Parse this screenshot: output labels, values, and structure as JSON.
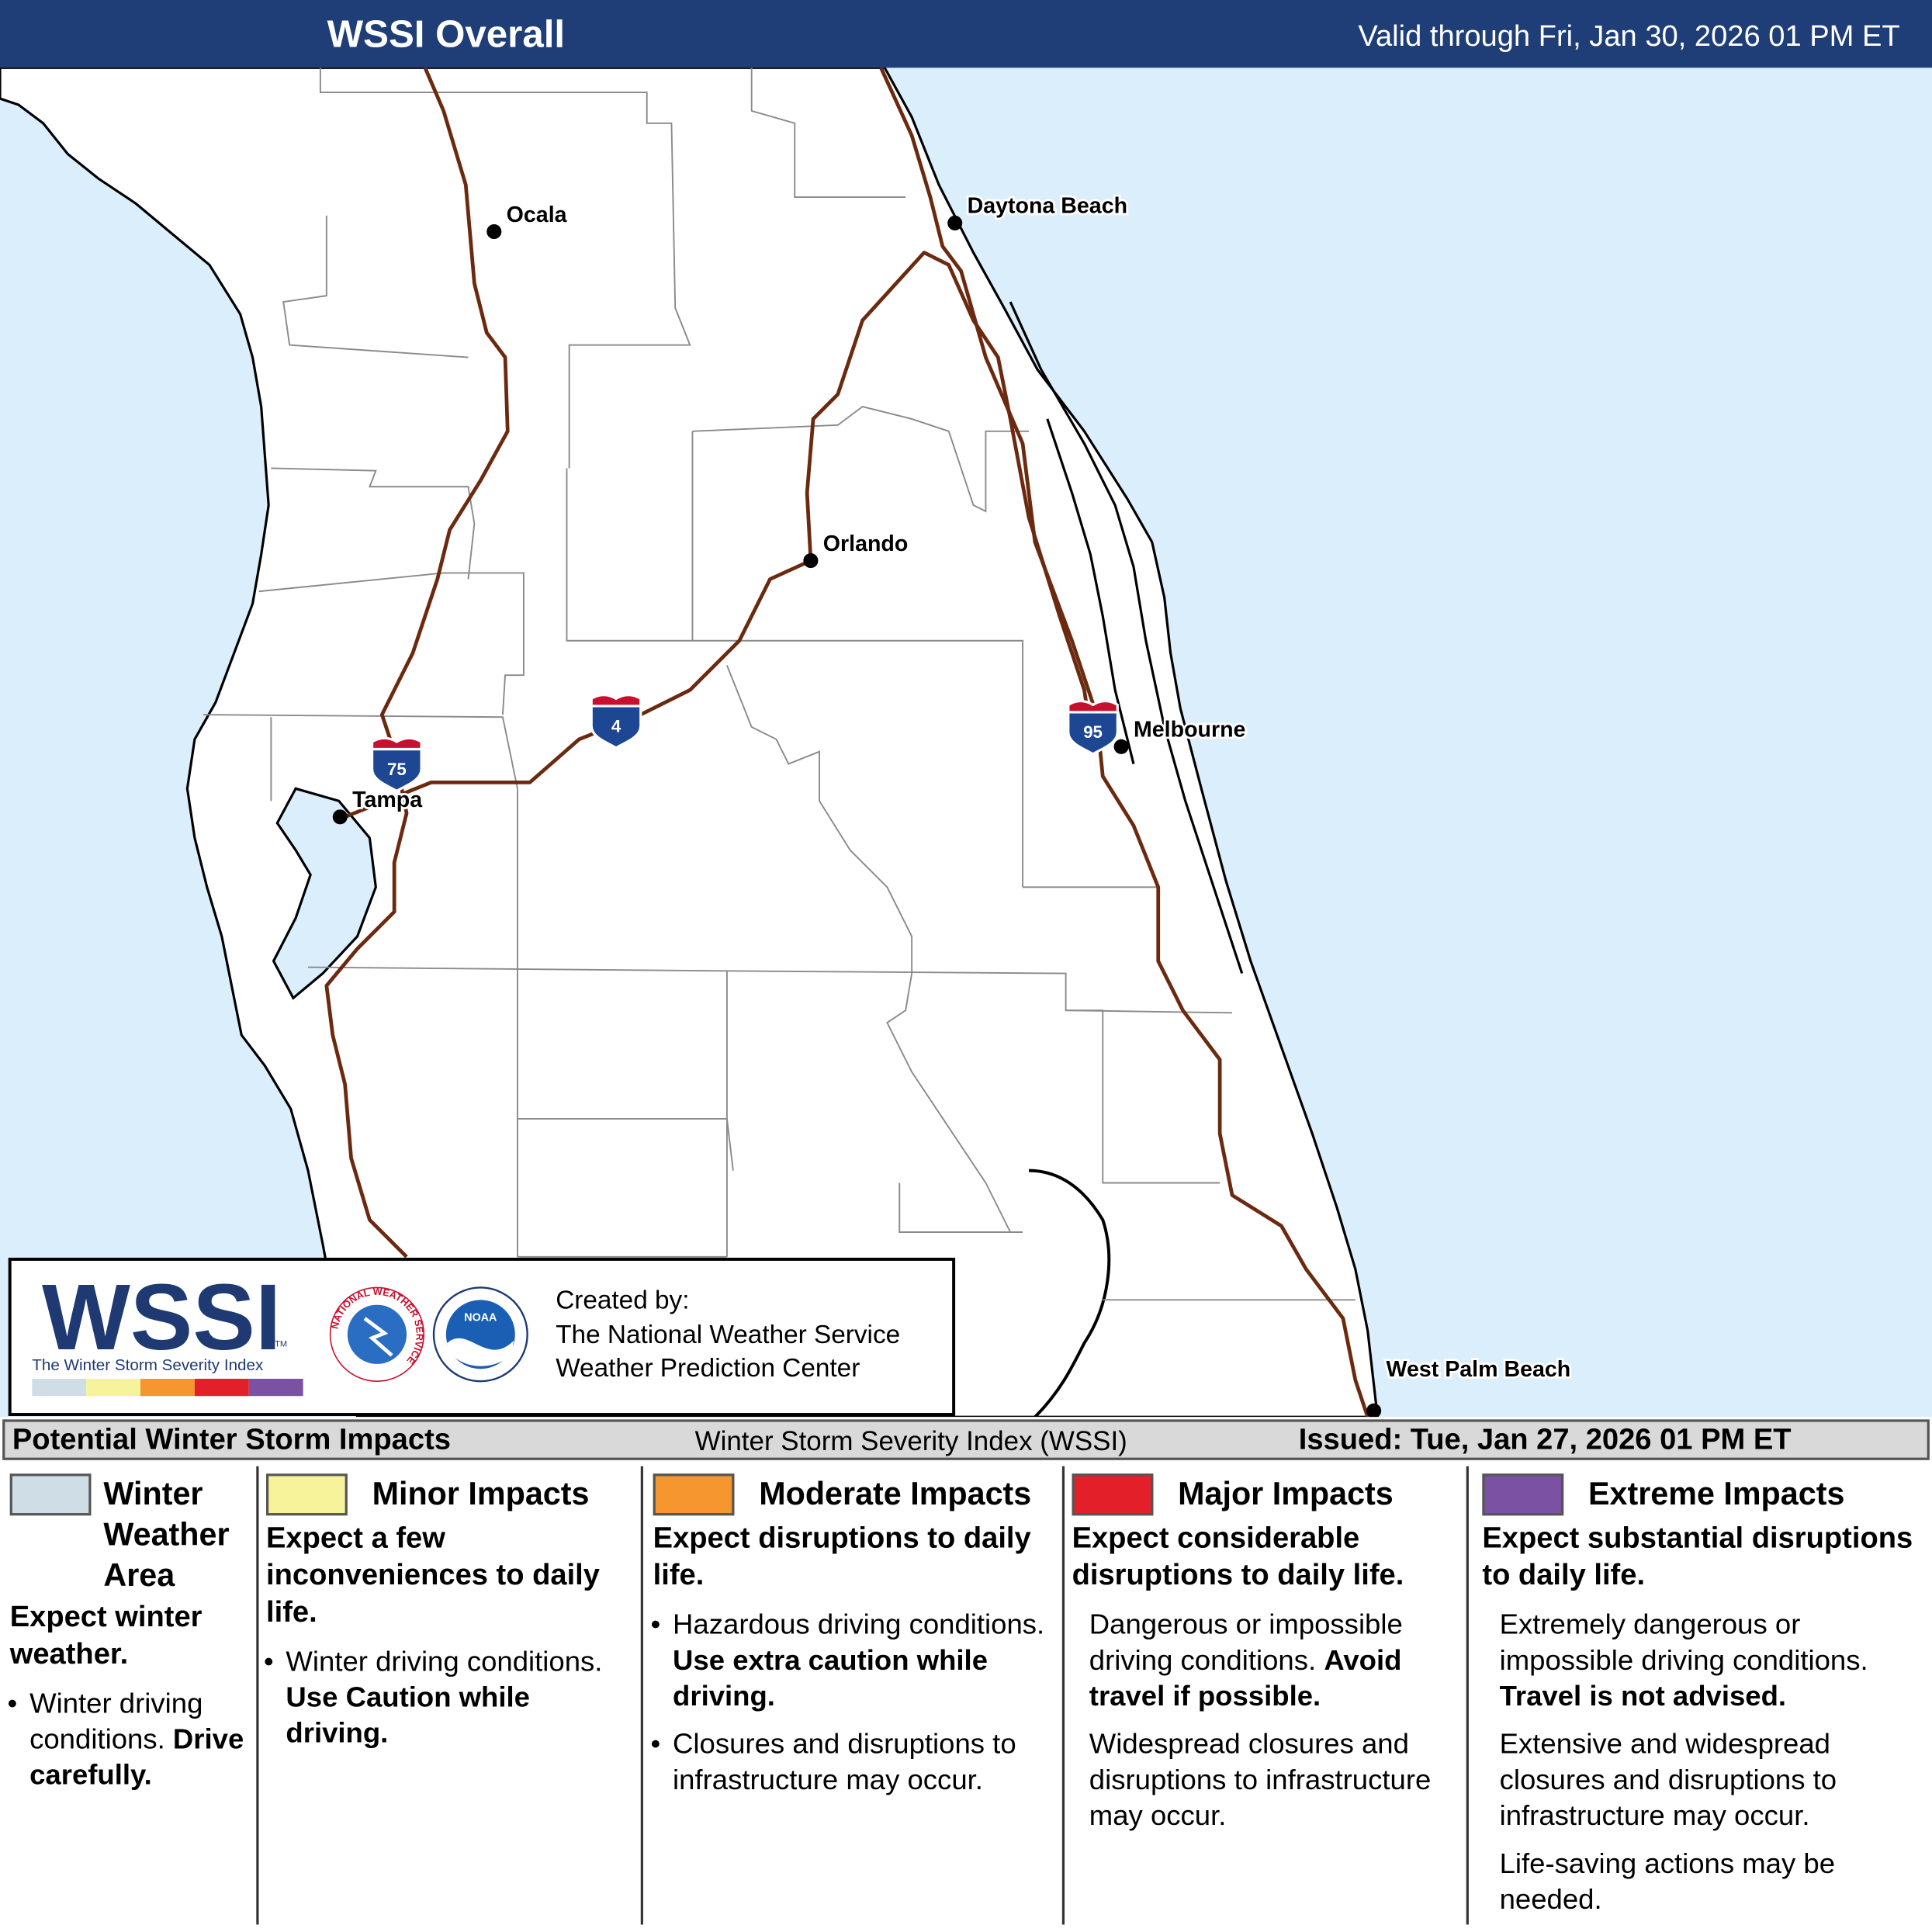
{
  "header": {
    "title": "WSSI Overall",
    "valid": "Valid through Fri, Jan 30, 2026 01 PM ET"
  },
  "map": {
    "cities": [
      "Ocala",
      "Daytona Beach",
      "Orlando",
      "Melbourne",
      "Tampa",
      "West Palm Beach"
    ],
    "interstates": [
      "75",
      "4",
      "95"
    ]
  },
  "logo_box": {
    "logo_text": "WSSI",
    "logo_tm": "TM",
    "logo_subtitle": "The Winter Storm Severity Index",
    "nws_ring": "NATIONAL WEATHER SERVICE",
    "noaa_center": "NOAA",
    "created_by": [
      "Created by:",
      "The National Weather Service",
      "Weather Prediction Center"
    ]
  },
  "legend": {
    "title": "Potential Winter Storm Impacts",
    "center": "Winter Storm Severity Index (WSSI)",
    "issued": "Issued: Tue, Jan 27, 2026 01 PM ET",
    "categories": [
      {
        "name": "Winter Weather Area",
        "color": "#cfdde6",
        "bullets": true,
        "headline": "Expect winter weather.",
        "items": [
          {
            "text": "Winter driving conditions.",
            "bold": "Drive carefully."
          }
        ]
      },
      {
        "name": "Minor Impacts",
        "color": "#f6f39b",
        "bullets": true,
        "headline": "Expect a few inconveniences to daily life.",
        "items": [
          {
            "text": "Winter driving conditions.",
            "bold": "Use Caution while driving."
          }
        ]
      },
      {
        "name": "Moderate Impacts",
        "color": "#f5962f",
        "bullets": true,
        "headline": "Expect disruptions to daily life.",
        "items": [
          {
            "text": "Hazardous driving conditions.",
            "bold": "Use extra caution while driving."
          },
          {
            "text": "Closures and disruptions to infrastructure may occur."
          }
        ]
      },
      {
        "name": "Major Impacts",
        "color": "#e3202a",
        "bullets": false,
        "headline": "Expect considerable disruptions to daily life.",
        "items": [
          {
            "text": "Dangerous or impossible driving conditions.",
            "bold": "Avoid travel if possible."
          },
          {
            "text": "Widespread closures and disruptions to infrastructure may occur."
          }
        ]
      },
      {
        "name": "Extreme Impacts",
        "color": "#7b52a3",
        "bullets": false,
        "headline": "Expect substantial disruptions to daily life.",
        "items": [
          {
            "text": "Extremely dangerous or impossible driving conditions.",
            "bold": "Travel is not advised."
          },
          {
            "text": "Extensive and widespread closures and disruptions to infrastructure may occur."
          },
          {
            "text": "Life-saving actions may be needed."
          }
        ]
      }
    ]
  }
}
